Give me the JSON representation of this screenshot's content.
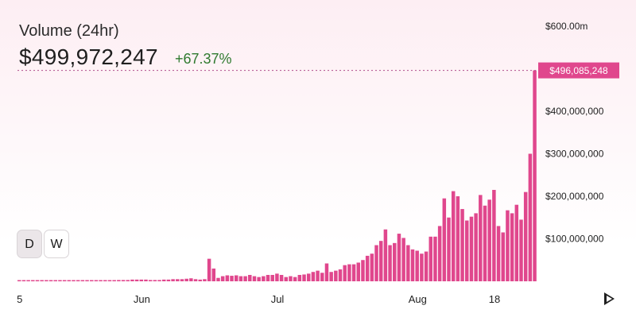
{
  "header": {
    "title": "Volume (24hr)",
    "value": "$499,972,247",
    "change": "+67.37%"
  },
  "controls": {
    "day_label": "D",
    "week_label": "W"
  },
  "colors": {
    "bar": "#e0478d",
    "last_bar": "#e0478d",
    "price_tag": "#e0478d",
    "change_positive": "#2f7a2f",
    "crosshair": "#b04d8c"
  },
  "icons": {
    "play": "play-icon"
  },
  "chart_data": {
    "type": "bar",
    "ylim": [
      0,
      600000000
    ],
    "y_tick_values": [
      100000000,
      200000000,
      300000000,
      400000000,
      600000000
    ],
    "y_tick_labels": [
      "$100,000,000",
      "$200,000,000",
      "$300,000,000",
      "$400,000,000",
      "$600.00m"
    ],
    "x_tick_labels": [
      {
        "label": "5",
        "index": 0
      },
      {
        "label": "Jun",
        "index": 27
      },
      {
        "label": "Jul",
        "index": 57
      },
      {
        "label": "Aug",
        "index": 88
      },
      {
        "label": "18",
        "index": 105
      }
    ],
    "current_value": 496085248,
    "current_value_label": "$496,085,248",
    "values": [
      1000000,
      1000000,
      1000000,
      1000000,
      1000000,
      1000000,
      1000000,
      1000000,
      1000000,
      1000000,
      1000000,
      1000000,
      1000000,
      1000000,
      1000000,
      1000000,
      1000000,
      1500000,
      1500000,
      1500000,
      2000000,
      2000000,
      3000000,
      3000000,
      3000000,
      4000000,
      4000000,
      4000000,
      4000000,
      3000000,
      3000000,
      3000000,
      4000000,
      4000000,
      5000000,
      5000000,
      5000000,
      6000000,
      7000000,
      5000000,
      4000000,
      5000000,
      53000000,
      30000000,
      8000000,
      12000000,
      14000000,
      13000000,
      14000000,
      12000000,
      12000000,
      15000000,
      12000000,
      10000000,
      12000000,
      15000000,
      15000000,
      18000000,
      15000000,
      10000000,
      12000000,
      10000000,
      15000000,
      16000000,
      18000000,
      22000000,
      25000000,
      20000000,
      42000000,
      22000000,
      25000000,
      28000000,
      38000000,
      40000000,
      40000000,
      44000000,
      50000000,
      60000000,
      65000000,
      85000000,
      95000000,
      122000000,
      85000000,
      90000000,
      112000000,
      102000000,
      85000000,
      75000000,
      72000000,
      65000000,
      70000000,
      105000000,
      105000000,
      130000000,
      195000000,
      150000000,
      212000000,
      200000000,
      170000000,
      143000000,
      152000000,
      160000000,
      203000000,
      178000000,
      192000000,
      215000000,
      130000000,
      115000000,
      167000000,
      160000000,
      180000000,
      145000000,
      210000000,
      300000000,
      496085248
    ]
  }
}
